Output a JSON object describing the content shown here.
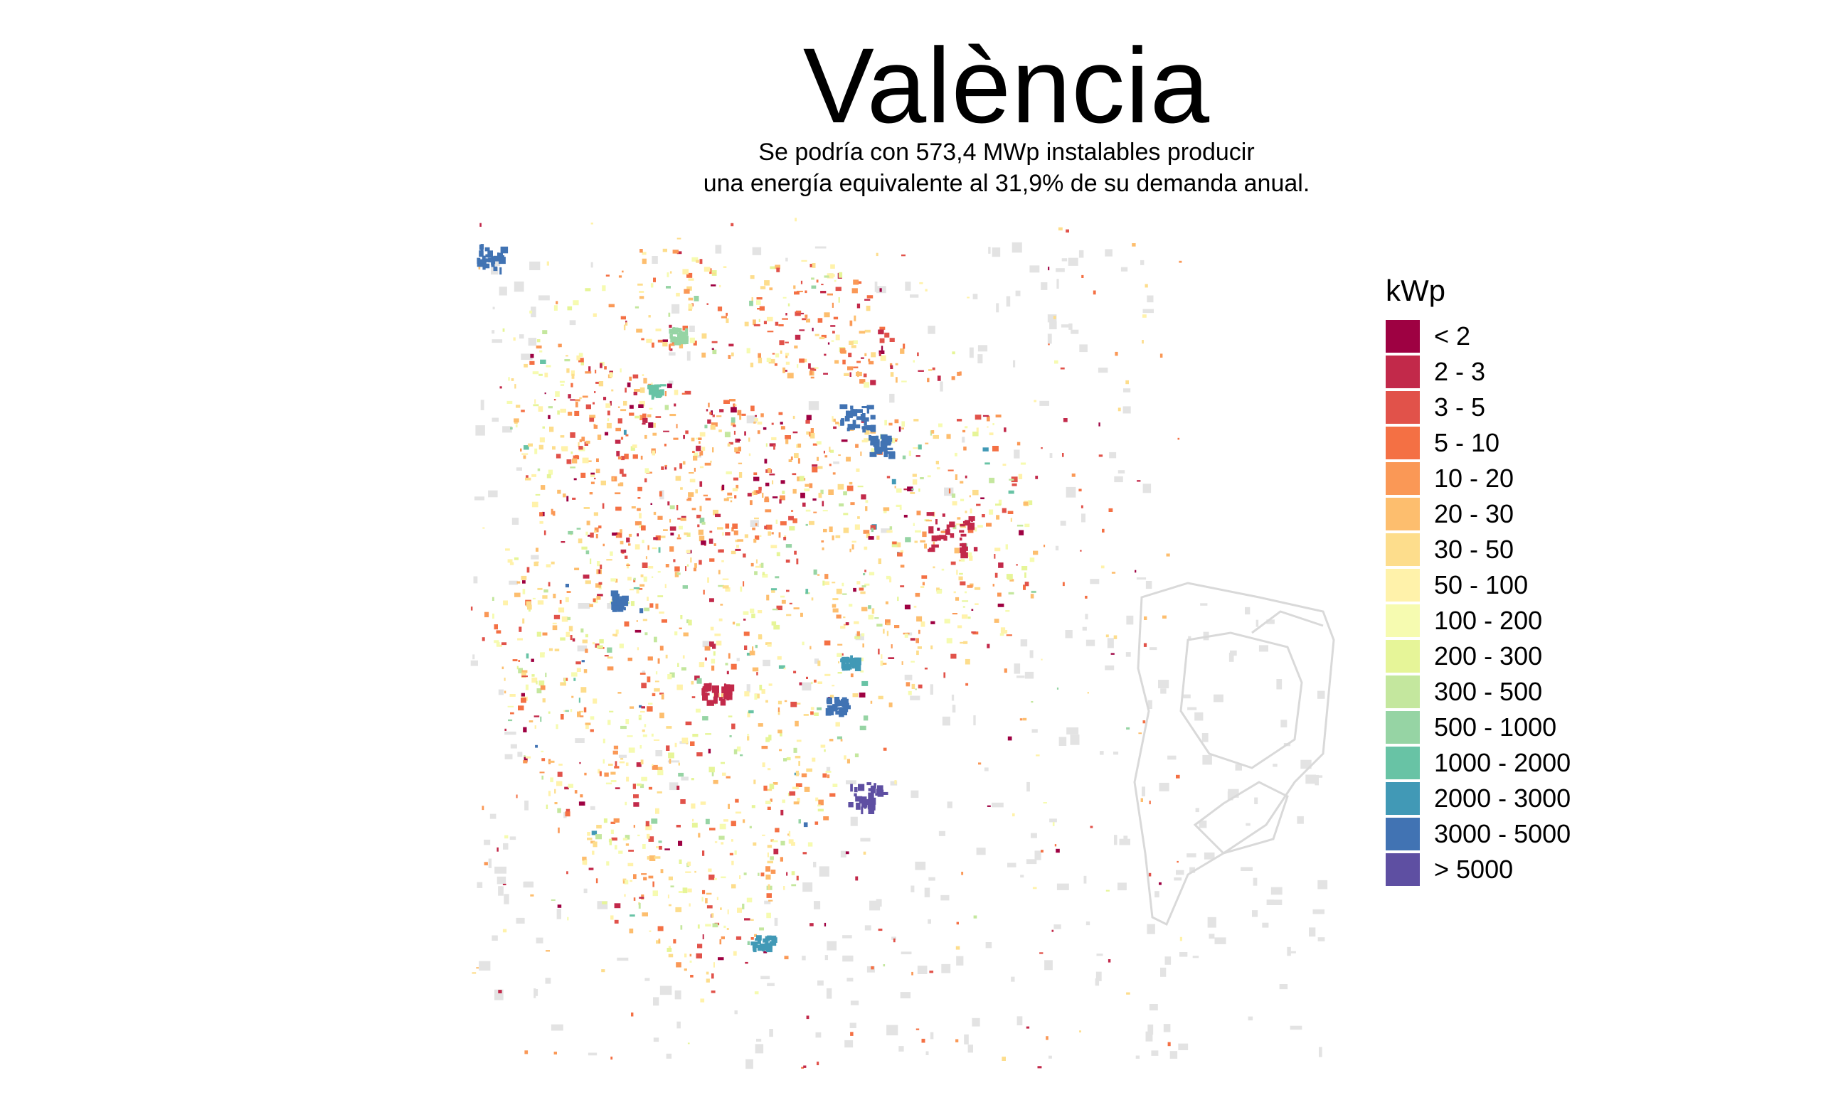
{
  "header": {
    "title": "València",
    "subtitle_line1": "Se podría con 573,4 MWp instalables producir",
    "subtitle_line2": "una energía equivalente al 31,9% de su demanda anual."
  },
  "legend": {
    "title": "kWp",
    "items": [
      {
        "label": "< 2",
        "color": "#9e0142"
      },
      {
        "label": "2 - 3",
        "color": "#c2294a"
      },
      {
        "label": "3 - 5",
        "color": "#e1524a"
      },
      {
        "label": "5 - 10",
        "color": "#f47044"
      },
      {
        "label": "10 - 20",
        "color": "#fa9856"
      },
      {
        "label": "20 - 30",
        "color": "#fdbe6e"
      },
      {
        "label": "30 - 50",
        "color": "#fddd8c"
      },
      {
        "label": "50 - 100",
        "color": "#fff2aa"
      },
      {
        "label": "100 - 200",
        "color": "#f6fbb0"
      },
      {
        "label": "200 - 300",
        "color": "#e6f598"
      },
      {
        "label": "300 - 500",
        "color": "#c4e79e"
      },
      {
        "label": "500 - 1000",
        "color": "#96d4a4"
      },
      {
        "label": "1000 - 2000",
        "color": "#68c3a5"
      },
      {
        "label": "2000 - 3000",
        "color": "#4199b6"
      },
      {
        "label": "3000 - 5000",
        "color": "#4173b3"
      },
      {
        "label": "> 5000",
        "color": "#5e4fa2"
      }
    ]
  },
  "map": {
    "background_building_color": "#e3e3e3",
    "port_outline_color": "#d9d9d9"
  }
}
